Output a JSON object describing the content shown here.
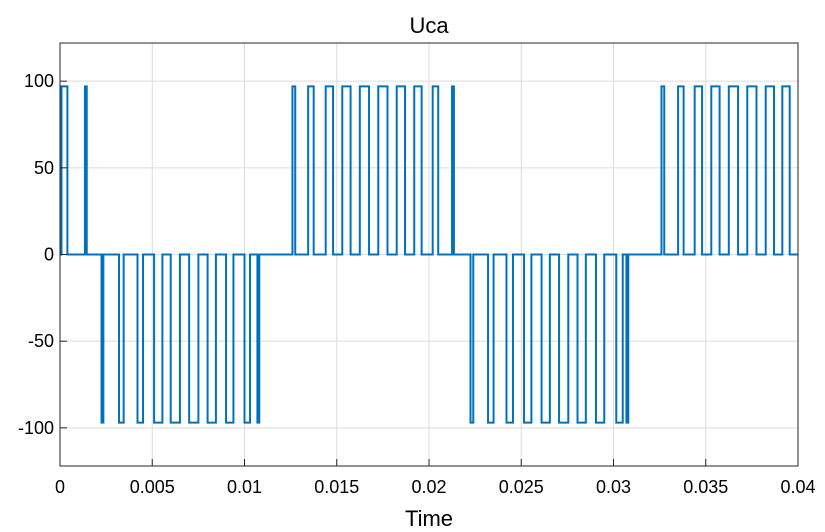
{
  "chart_data": {
    "type": "line",
    "title": "Uca",
    "xlabel": "Time",
    "ylabel": "",
    "xlim": [
      0,
      0.04
    ],
    "ylim": [
      -122,
      122
    ],
    "grid": true,
    "x_ticks": [
      0,
      0.005,
      0.01,
      0.015,
      0.02,
      0.025,
      0.03,
      0.035,
      0.04
    ],
    "x_tick_labels": [
      "0",
      "0.005",
      "0.01",
      "0.015",
      "0.02",
      "0.025",
      "0.03",
      "0.035",
      "0.04"
    ],
    "y_ticks": [
      100,
      50,
      0,
      -50,
      -100
    ],
    "y_tick_labels": [
      "100",
      "50",
      "0",
      "-50",
      "-100"
    ],
    "series": [
      {
        "color": "#0072bd",
        "amplitude": 97,
        "pulses": [
          {
            "start": 8e-05,
            "end": 0.0004,
            "value": 97
          },
          {
            "start": 0.00135,
            "end": 0.00145,
            "value": 97
          },
          {
            "start": 0.00225,
            "end": 0.00235,
            "value": -97
          },
          {
            "start": 0.0032,
            "end": 0.00345,
            "value": -97
          },
          {
            "start": 0.0042,
            "end": 0.0045,
            "value": -97
          },
          {
            "start": 0.0051,
            "end": 0.00555,
            "value": -97
          },
          {
            "start": 0.006,
            "end": 0.0065,
            "value": -97
          },
          {
            "start": 0.007,
            "end": 0.0075,
            "value": -97
          },
          {
            "start": 0.008,
            "end": 0.00845,
            "value": -97
          },
          {
            "start": 0.009,
            "end": 0.0094,
            "value": -97
          },
          {
            "start": 0.01,
            "end": 0.0103,
            "value": -97
          },
          {
            "start": 0.0107,
            "end": 0.0108,
            "value": -97
          },
          {
            "start": 0.0126,
            "end": 0.01275,
            "value": 97
          },
          {
            "start": 0.01345,
            "end": 0.01375,
            "value": 97
          },
          {
            "start": 0.0144,
            "end": 0.0148,
            "value": 97
          },
          {
            "start": 0.0153,
            "end": 0.01575,
            "value": 97
          },
          {
            "start": 0.01625,
            "end": 0.01675,
            "value": 97
          },
          {
            "start": 0.01725,
            "end": 0.01775,
            "value": 97
          },
          {
            "start": 0.01825,
            "end": 0.0187,
            "value": 97
          },
          {
            "start": 0.0192,
            "end": 0.0196,
            "value": 97
          },
          {
            "start": 0.0202,
            "end": 0.0205,
            "value": 97
          },
          {
            "start": 0.02125,
            "end": 0.02135,
            "value": 97
          },
          {
            "start": 0.02225,
            "end": 0.0224,
            "value": -97
          },
          {
            "start": 0.0232,
            "end": 0.0235,
            "value": -97
          },
          {
            "start": 0.0242,
            "end": 0.02455,
            "value": -97
          },
          {
            "start": 0.02515,
            "end": 0.02555,
            "value": -97
          },
          {
            "start": 0.0261,
            "end": 0.02655,
            "value": -97
          },
          {
            "start": 0.02705,
            "end": 0.02755,
            "value": -97
          },
          {
            "start": 0.02805,
            "end": 0.0285,
            "value": -97
          },
          {
            "start": 0.02905,
            "end": 0.0295,
            "value": -97
          },
          {
            "start": 0.03015,
            "end": 0.0305,
            "value": -97
          },
          {
            "start": 0.0307,
            "end": 0.0308,
            "value": -97
          },
          {
            "start": 0.0326,
            "end": 0.03275,
            "value": 97
          },
          {
            "start": 0.0335,
            "end": 0.0338,
            "value": 97
          },
          {
            "start": 0.0344,
            "end": 0.0348,
            "value": 97
          },
          {
            "start": 0.0353,
            "end": 0.03575,
            "value": 97
          },
          {
            "start": 0.03625,
            "end": 0.03675,
            "value": 97
          },
          {
            "start": 0.03725,
            "end": 0.03775,
            "value": 97
          },
          {
            "start": 0.03825,
            "end": 0.0387,
            "value": 97
          },
          {
            "start": 0.03915,
            "end": 0.03955,
            "value": 97
          }
        ]
      }
    ]
  }
}
